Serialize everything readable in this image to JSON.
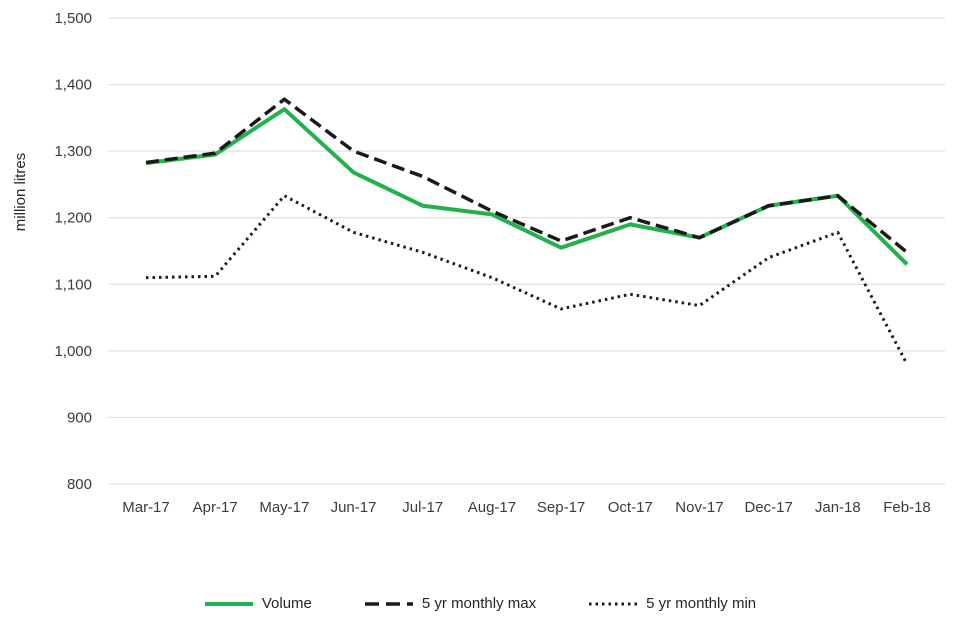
{
  "chart_data": {
    "type": "line",
    "title": "",
    "xlabel": "",
    "ylabel": "million litres",
    "ylim": [
      800,
      1500
    ],
    "ytick_step": 100,
    "grid": true,
    "legend_position": "bottom",
    "colors": {
      "volume_green": "#22b14c",
      "reference_black": "#1a1a1a",
      "gridline_gray": "#d9d9d9",
      "tick_label_gray": "#3b3b3b"
    },
    "categories": [
      "Mar-17",
      "Apr-17",
      "May-17",
      "Jun-17",
      "Jul-17",
      "Aug-17",
      "Sep-17",
      "Oct-17",
      "Nov-17",
      "Dec-17",
      "Jan-18",
      "Feb-18"
    ],
    "y_tick_labels": [
      "800",
      "900",
      "1,000",
      "1,100",
      "1,200",
      "1,300",
      "1,400",
      "1,500"
    ],
    "series": [
      {
        "name": "Volume",
        "style": "solid",
        "color": "#22b14c",
        "values": [
          1282,
          1295,
          1363,
          1268,
          1218,
          1205,
          1155,
          1190,
          1170,
          1218,
          1233,
          1130
        ]
      },
      {
        "name": "5 yr monthly max",
        "style": "dashed",
        "color": "#1a1a1a",
        "values": [
          1283,
          1297,
          1378,
          1300,
          1262,
          1210,
          1165,
          1200,
          1170,
          1218,
          1233,
          1148
        ]
      },
      {
        "name": "5 yr monthly min",
        "style": "dotted",
        "color": "#1a1a1a",
        "values": [
          1110,
          1112,
          1233,
          1178,
          1148,
          1110,
          1063,
          1085,
          1068,
          1140,
          1178,
          980
        ]
      }
    ]
  }
}
